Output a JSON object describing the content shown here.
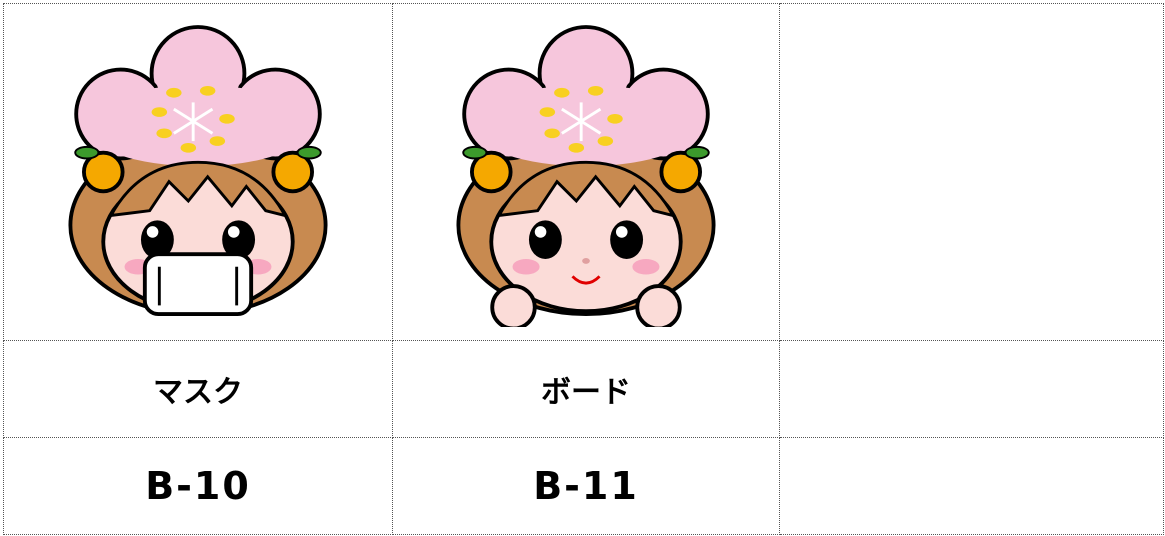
{
  "items": [
    {
      "name": "マスク",
      "code": "B-10"
    },
    {
      "name": "ボード",
      "code": "B-11"
    }
  ]
}
